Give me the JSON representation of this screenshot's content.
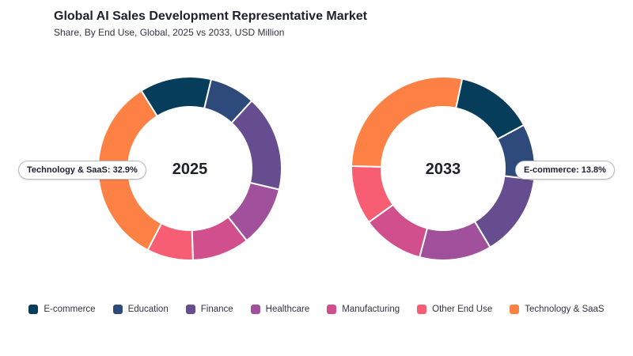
{
  "header": {
    "title": "Global AI Sales Development Representative Market",
    "subtitle": "Share, By End Use, Global, 2025 vs 2033, USD Million"
  },
  "chart_data": [
    {
      "type": "pie",
      "center_label": "2025",
      "categories": [
        "E-commerce",
        "Education",
        "Finance",
        "Healthcare",
        "Manufacturing",
        "Other End Use",
        "Technology & SaaS"
      ],
      "values": [
        12.4,
        7.9,
        16.6,
        10.5,
        9.9,
        8.0,
        32.9
      ],
      "colors": [
        "#053d5b",
        "#2d4a7a",
        "#664d8f",
        "#a1519b",
        "#d04f8c",
        "#f75e73",
        "#fd8144"
      ],
      "annotation": "Technology & SaaS: 32.9%",
      "legend_position": "bottom"
    },
    {
      "type": "pie",
      "center_label": "2033",
      "categories": [
        "E-commerce",
        "Education",
        "Finance",
        "Healthcare",
        "Manufacturing",
        "Other End Use",
        "Technology & SaaS"
      ],
      "values": [
        13.8,
        9.8,
        14.5,
        12.7,
        10.9,
        10.4,
        27.9
      ],
      "colors": [
        "#053d5b",
        "#2d4a7a",
        "#664d8f",
        "#a1519b",
        "#d04f8c",
        "#f75e73",
        "#fd8144"
      ],
      "annotation": "E-commerce: 13.8%",
      "legend_position": "bottom"
    }
  ],
  "legend": {
    "items": [
      {
        "label": "E-commerce",
        "color": "#053d5b"
      },
      {
        "label": "Education",
        "color": "#2d4a7a"
      },
      {
        "label": "Finance",
        "color": "#664d8f"
      },
      {
        "label": "Healthcare",
        "color": "#a1519b"
      },
      {
        "label": "Manufacturing",
        "color": "#d04f8c"
      },
      {
        "label": "Other End Use",
        "color": "#f75e73"
      },
      {
        "label": "Technology & SaaS",
        "color": "#fd8144"
      }
    ]
  }
}
